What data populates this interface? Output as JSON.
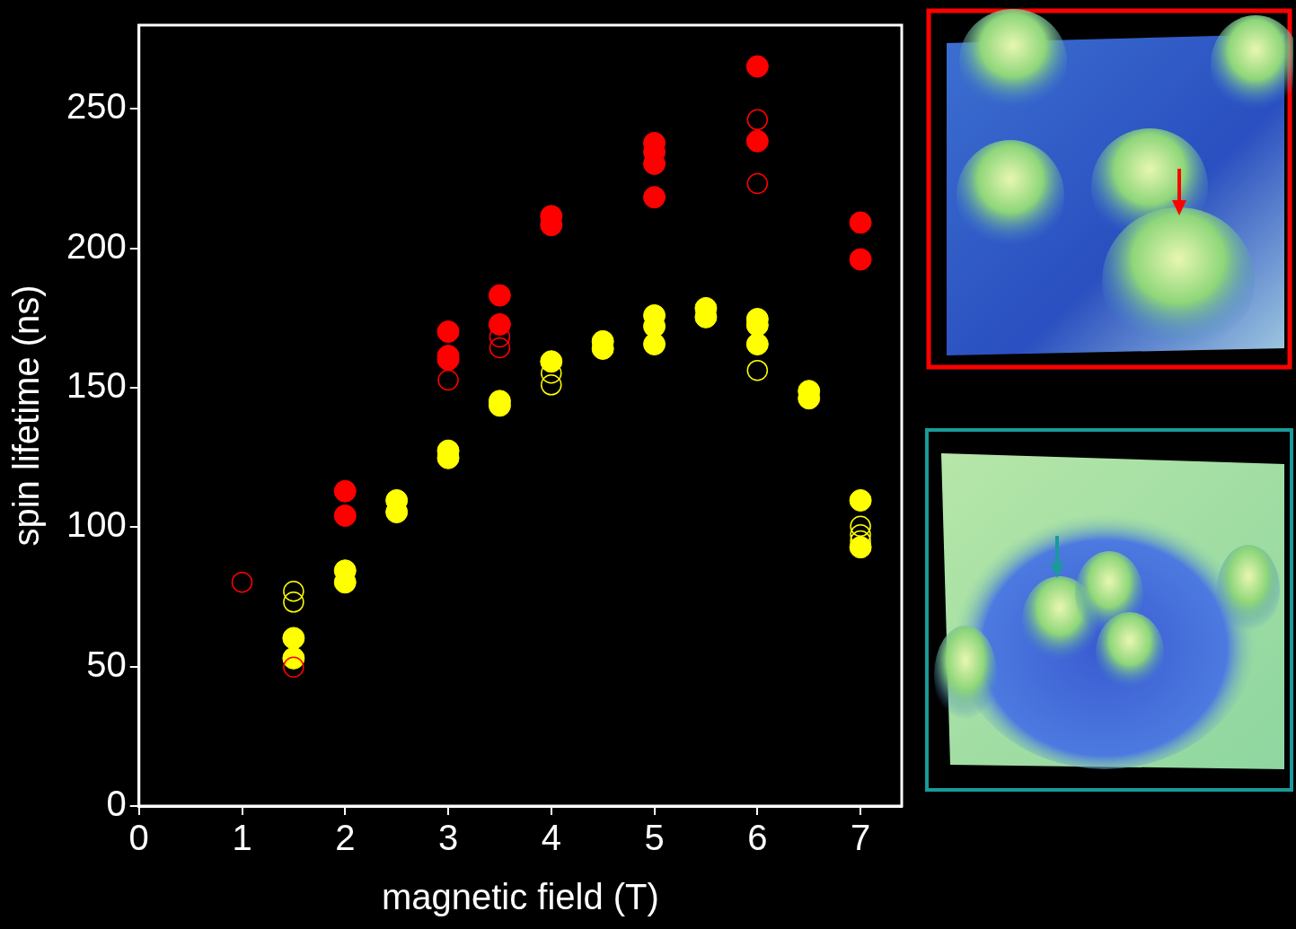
{
  "chart_data": {
    "type": "scatter",
    "x_label": "magnetic field (T)",
    "y_label": "spin lifetime (ns)",
    "xlim": [
      0,
      7.4
    ],
    "xticks": [
      0,
      1,
      2,
      3,
      4,
      5,
      6,
      7
    ],
    "ylim": [
      0,
      280
    ],
    "yticks": [
      0,
      50,
      100,
      150,
      200,
      250
    ],
    "grid": false,
    "series": [
      {
        "color": "#ff0000",
        "marker": "circle",
        "x": [
          2,
          2,
          3,
          3,
          3,
          3.5,
          3.5,
          4,
          4,
          5,
          5,
          5,
          5,
          6,
          6,
          7,
          7
        ],
        "values": [
          112.9,
          104.1,
          170.1,
          161.4,
          160.1,
          183.1,
          172.7,
          211.5,
          208.3,
          237.7,
          234.5,
          230.3,
          218.3,
          265.2,
          238.4,
          209.2,
          196
        ]
      },
      {
        "color": "#ff0000",
        "marker": "open_circle",
        "x": [
          1,
          1.5,
          3,
          3.5,
          3.5,
          6,
          6
        ],
        "values": [
          80.2,
          49.8,
          152.7,
          168.2,
          164.3,
          246.1,
          223.2
        ]
      },
      {
        "color": "#ffff00",
        "marker": "circle",
        "x": [
          1.5,
          1.5,
          2,
          2,
          2.5,
          2.5,
          3,
          3,
          3.5,
          3.5,
          4,
          4.5,
          4.5,
          5,
          5,
          5,
          5.5,
          5.5,
          6,
          6,
          6,
          6.5,
          6.5,
          7,
          7
        ],
        "values": [
          60.2,
          53,
          84.4,
          80.2,
          109.6,
          105.4,
          127.4,
          124.8,
          145.2,
          143.6,
          159.4,
          166.6,
          164,
          175.9,
          172,
          165.6,
          178.5,
          175.3,
          174.6,
          172.4,
          165.6,
          148.8,
          146.2,
          109.6,
          92.8
        ]
      },
      {
        "color": "#ffff00",
        "marker": "open_circle",
        "x": [
          1.5,
          1.5,
          4,
          4,
          6,
          7,
          7,
          7
        ],
        "values": [
          77,
          73.1,
          155.2,
          151,
          156.2,
          100.3,
          97.3,
          95.1
        ]
      }
    ]
  }
}
